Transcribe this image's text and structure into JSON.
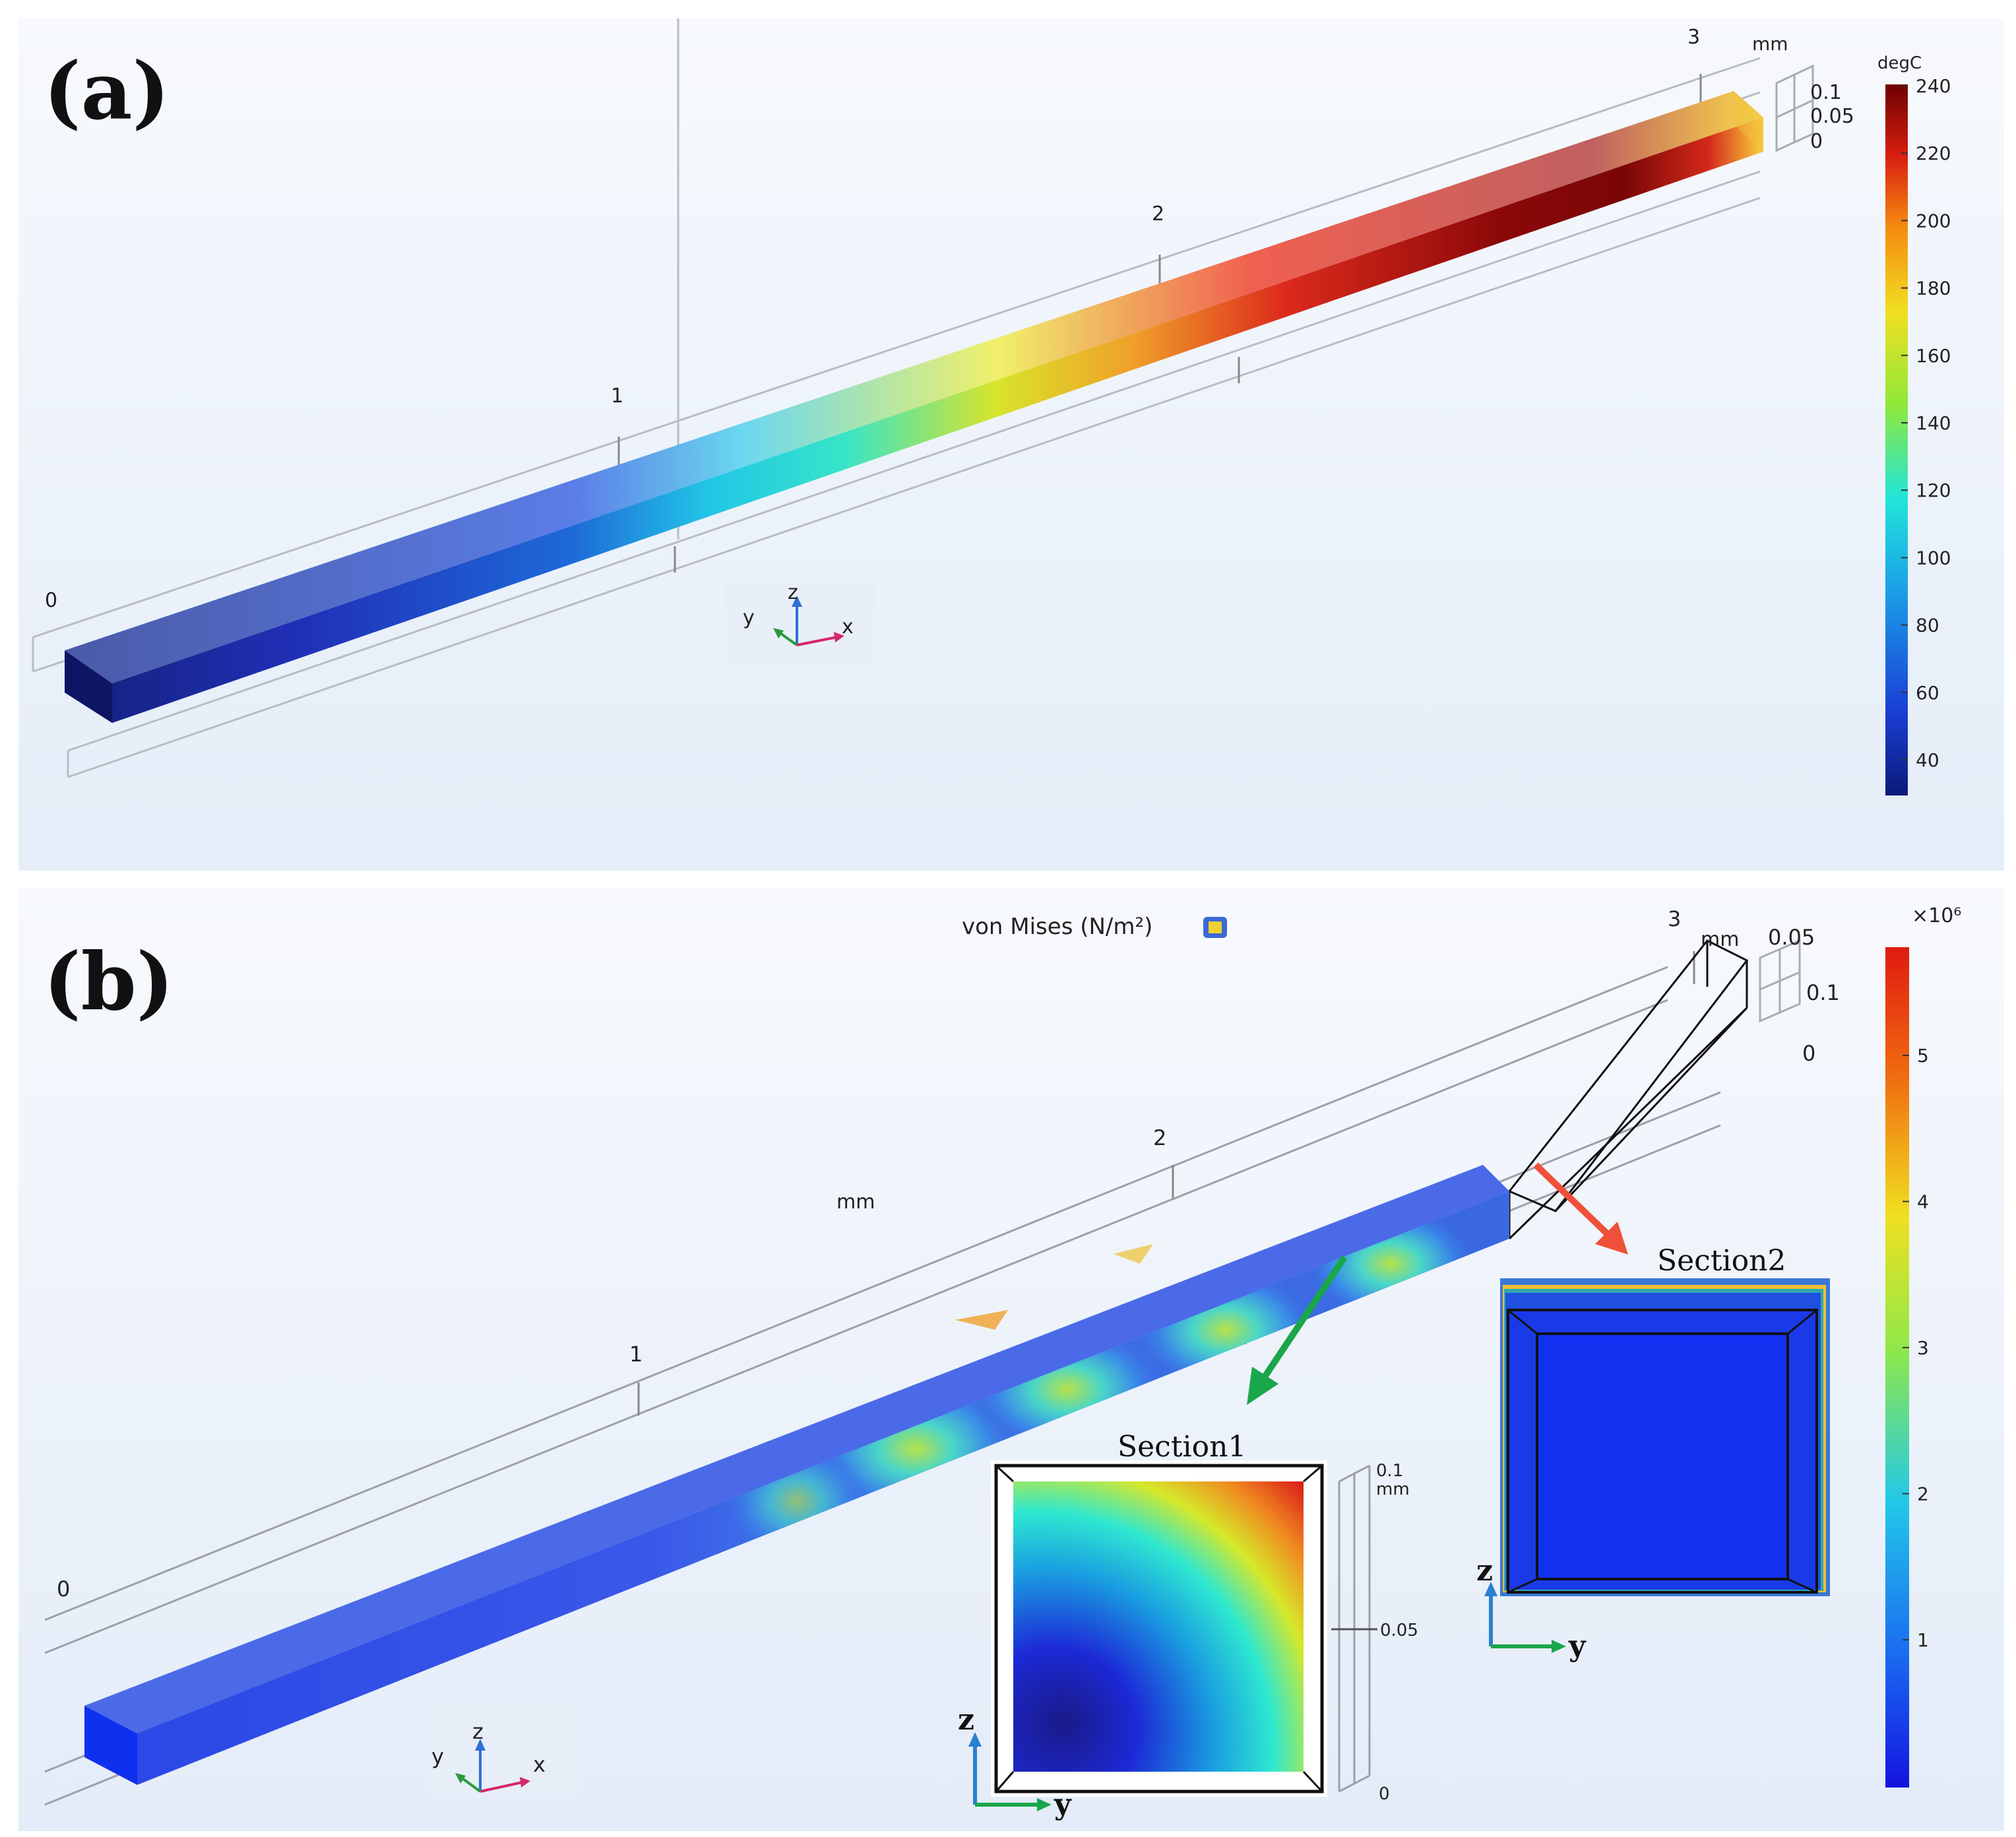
{
  "panel_a": {
    "label": "(a)",
    "unit": "mm",
    "axis_ticks": [
      "0",
      "1",
      "2",
      "3"
    ],
    "dim_ticks": [
      "0.1",
      "0.05",
      "0"
    ],
    "triad": {
      "x": "x",
      "y": "y",
      "z": "z"
    },
    "colorbar": {
      "unit": "degC",
      "ticks": [
        "240",
        "220",
        "200",
        "180",
        "160",
        "140",
        "120",
        "100",
        "80",
        "60",
        "40"
      ],
      "colors": [
        "#0a1a7a",
        "#1a3fd6",
        "#1aa6e8",
        "#22e6d8",
        "#8fe83a",
        "#f0e020",
        "#f58a10",
        "#d81f10",
        "#6e0000"
      ]
    },
    "beam_colors": [
      "#14207a",
      "#2436c8",
      "#2aa9e6",
      "#2ee8d4",
      "#d6e42a",
      "#f29a2a",
      "#d6231a",
      "#8a0a0a",
      "#8a0a0a"
    ]
  },
  "panel_b": {
    "label": "(b)",
    "title": "von Mises (N/m²)",
    "unit": "mm",
    "mid_unit": "mm",
    "axis_ticks": [
      "0",
      "1",
      "2",
      "3"
    ],
    "dim_ticks": [
      "0.05",
      "0.1",
      "0"
    ],
    "triad": {
      "x": "x",
      "y": "y",
      "z": "z"
    },
    "colorbar": {
      "exponent_label": "×10⁶",
      "ticks": [
        "5",
        "4",
        "3",
        "2",
        "1"
      ],
      "colors": [
        "#1414e0",
        "#1a6cf0",
        "#22c8e8",
        "#8ee84a",
        "#f0e020",
        "#f07010",
        "#e01a10"
      ]
    },
    "section1": {
      "title": "Section1",
      "axis_z": "z",
      "axis_y": "y",
      "scale_ticks": [
        "0.1",
        "mm",
        "0.05",
        "0"
      ]
    },
    "section2": {
      "title": "Section2",
      "axis_z": "z",
      "axis_y": "y"
    },
    "arrow_colors": {
      "section1": "#1aa64a",
      "section2": "#f0503a"
    }
  }
}
